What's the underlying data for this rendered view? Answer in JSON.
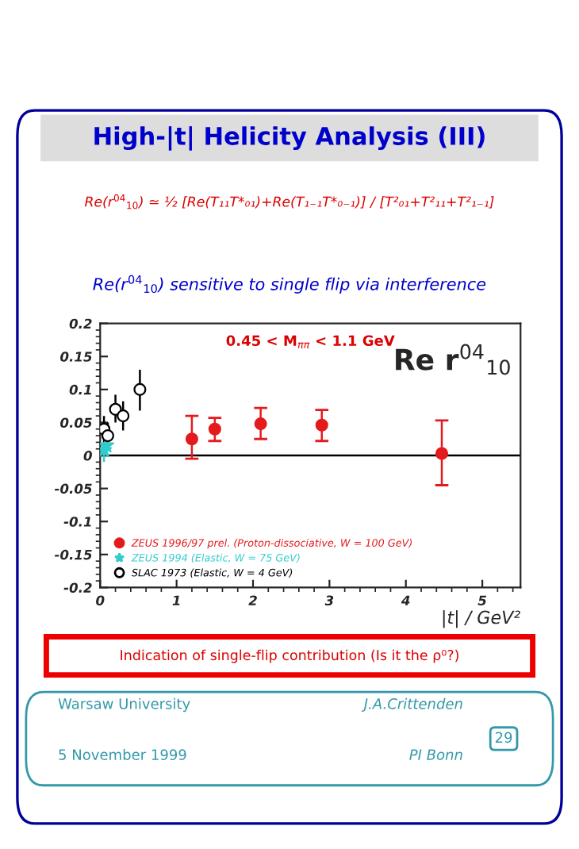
{
  "chart_data": {
    "type": "scatter",
    "title": "High-|t| Helicity Analysis (III)",
    "subtitle": "Re(r$^{04}$$_{10}$) sensitive to single flip via interference",
    "xlabel": "|t| / GeV²",
    "annotations": [
      "Re(r$^{04}$$_{10}$) ≃ ½ [Re(T₁₁T*₀₁)+Re(T₁₋₁T*₀₋₁)] / [T²₀₁+T²₁₁+T²₁₋₁]",
      "0.45 < M$_{ππ}$ < 1.1 GeV",
      "Re r$^{04}$$_{10}$",
      "Indication of single-flip contribution (Is it the ρ⁰?)",
      "Warsaw University",
      "5 November 1999",
      "J.A.Crittenden",
      "PI Bonn",
      "29"
    ],
    "series": [
      {
        "name": "ZEUS 1996/97 prel. (Proton-dissociative, W = 100 GeV)",
        "color": "#e41a1c",
        "marker": "circle",
        "x": [
          1.2,
          1.5,
          2.1,
          2.9,
          4.47
        ],
        "values": [
          0.025,
          0.04,
          0.048,
          0.046,
          0.003
        ],
        "errors": [
          [
            -0.005,
            0.06
          ],
          [
            0.022,
            0.057
          ],
          [
            0.025,
            0.072
          ],
          [
            0.022,
            0.069
          ],
          [
            -0.045,
            0.053
          ]
        ]
      },
      {
        "name": "ZEUS 1994 (Elastic, W = 75 GeV)",
        "color": "#33cccc",
        "marker": "star",
        "x": [
          0.05,
          0.08
        ],
        "values": [
          0.008,
          0.015
        ],
        "errors": [
          [
            -0.01,
            0.025
          ],
          [
            0.0,
            0.03
          ]
        ]
      },
      {
        "name": "SLAC 1973 (Elastic, W = 4 GeV)",
        "color": "#000000",
        "marker": "circle",
        "x": [
          0.05,
          0.1,
          0.2,
          0.3,
          0.52
        ],
        "values": [
          0.04,
          0.03,
          0.07,
          0.06,
          0.1
        ],
        "errors": [
          [
            0.015,
            0.06
          ],
          [
            0.01,
            0.05
          ],
          [
            0.05,
            0.092
          ],
          [
            0.038,
            0.082
          ],
          [
            0.068,
            0.13
          ]
        ]
      }
    ],
    "xlim": [
      0,
      5.5
    ],
    "xticks": [
      0,
      1,
      2,
      3,
      4,
      5
    ],
    "ylim": [
      -0.2,
      0.2
    ],
    "yticks": [
      {
        "value": -0.2,
        "label": "-0.2"
      },
      {
        "value": -0.15,
        "label": "-0.15"
      },
      {
        "value": -0.1,
        "label": "-0.1"
      },
      {
        "value": -0.05,
        "label": "-0.05"
      },
      0,
      0.05,
      0.1,
      0.15,
      0.2
    ],
    "ref_lines": [
      {
        "axis": "y",
        "value": 0,
        "color": "#000000"
      }
    ],
    "legend": "bottom left",
    "grid": false
  }
}
